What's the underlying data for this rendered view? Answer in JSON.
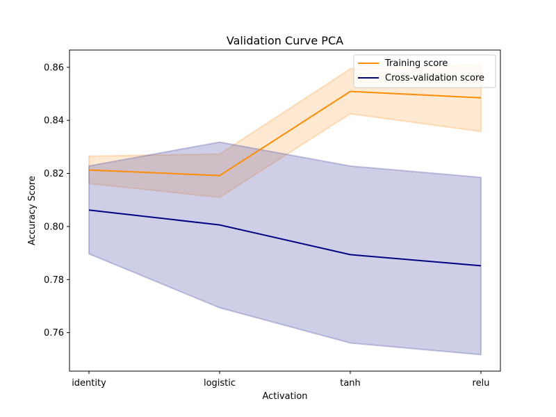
{
  "chart_data": {
    "type": "line",
    "title": "Validation Curve PCA",
    "xlabel": "Activation",
    "ylabel": "Accuracy Score",
    "categories": [
      "identity",
      "logistic",
      "tanh",
      "relu"
    ],
    "ylim": [
      0.7455,
      0.8665
    ],
    "yticks": [
      0.76,
      0.78,
      0.8,
      0.82,
      0.84,
      0.86
    ],
    "ytick_labels": [
      "0.76",
      "0.78",
      "0.80",
      "0.82",
      "0.84",
      "0.86"
    ],
    "grid": false,
    "legend_position": "top-right",
    "series": [
      {
        "name": "Training score",
        "color": "#ff8c00",
        "values": [
          0.8213,
          0.8192,
          0.8509,
          0.8485
        ],
        "band_upper": [
          0.8265,
          0.8273,
          0.8594,
          0.861
        ],
        "band_lower": [
          0.8162,
          0.811,
          0.8425,
          0.8358
        ]
      },
      {
        "name": "Cross-validation score",
        "color": "#000080",
        "values": [
          0.8062,
          0.8006,
          0.7894,
          0.7852
        ],
        "band_upper": [
          0.8228,
          0.8318,
          0.8228,
          0.8185
        ],
        "band_lower": [
          0.7897,
          0.7694,
          0.7561,
          0.7517
        ]
      }
    ]
  }
}
